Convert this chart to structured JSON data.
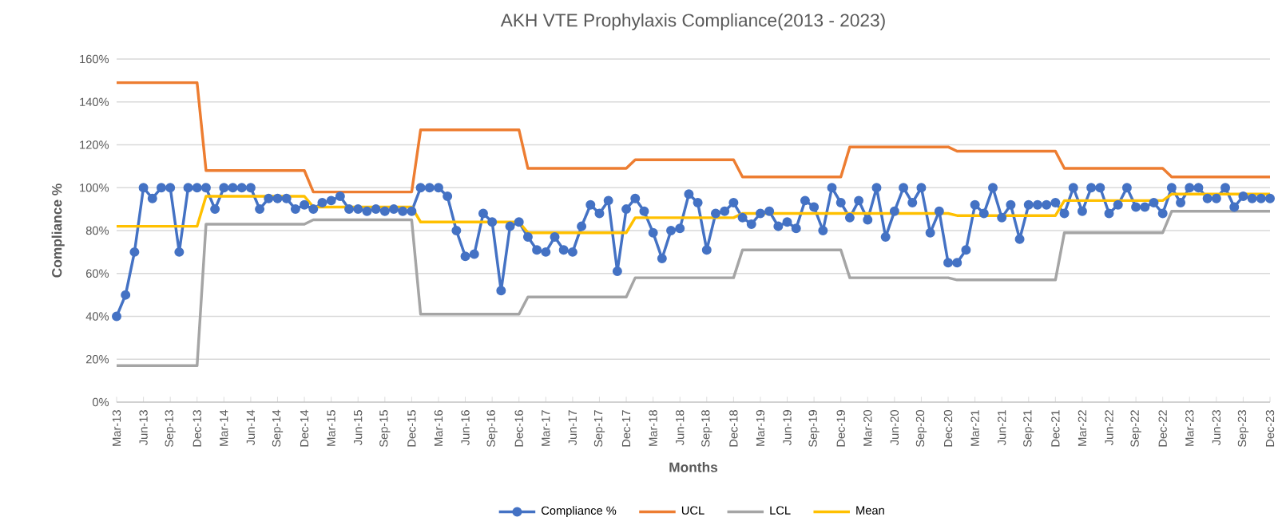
{
  "chart_data": {
    "type": "line",
    "title": "AKH VTE Prophylaxis Compliance(2013 - 2023)",
    "xlabel": "Months",
    "ylabel": "Compliance %",
    "categories": [
      "Mar-13",
      null,
      null,
      "Jun-13",
      null,
      null,
      "Sep-13",
      null,
      null,
      "Dec-13",
      null,
      null,
      "Mar-14",
      null,
      null,
      "Jun-14",
      null,
      null,
      "Sep-14",
      null,
      null,
      "Dec-14",
      null,
      null,
      "Mar-15",
      null,
      null,
      "Jun-15",
      null,
      null,
      "Sep-15",
      null,
      null,
      "Dec-15",
      null,
      null,
      "Mar-16",
      null,
      null,
      "Jun-16",
      null,
      null,
      "Sep-16",
      null,
      null,
      "Dec-16",
      null,
      null,
      "Mar-17",
      null,
      null,
      "Jun-17",
      null,
      null,
      "Sep-17",
      null,
      null,
      "Dec-17",
      null,
      null,
      "Mar-18",
      null,
      null,
      "Jun-18",
      null,
      null,
      "Sep-18",
      null,
      null,
      "Dec-18",
      null,
      null,
      "Mar-19",
      null,
      null,
      "Jun-19",
      null,
      null,
      "Sep-19",
      null,
      null,
      "Dec-19",
      null,
      null,
      "Mar-20",
      null,
      null,
      "Jun-20",
      null,
      null,
      "Sep-20",
      null,
      null,
      "Dec-20",
      null,
      null,
      "Mar-21",
      null,
      null,
      "Jun-21",
      null,
      null,
      "Sep-21",
      null,
      null,
      "Dec-21",
      null,
      null,
      "Mar-22",
      null,
      null,
      "Jun-22",
      null,
      null,
      "Sep-22",
      null,
      null,
      "Dec-22",
      null,
      null,
      "Mar-23",
      null,
      null,
      "Jun-23",
      null,
      null,
      "Sep-23",
      null,
      null,
      "Dec-23"
    ],
    "series": [
      {
        "name": "Compliance %",
        "color": "#4472c4",
        "marker": "circle",
        "values": [
          40,
          50,
          70,
          100,
          95,
          100,
          100,
          70,
          100,
          100,
          100,
          90,
          100,
          100,
          100,
          100,
          90,
          95,
          95,
          95,
          90,
          92,
          90,
          93,
          94,
          96,
          90,
          90,
          89,
          90,
          89,
          90,
          89,
          89,
          100,
          100,
          100,
          96,
          80,
          68,
          69,
          88,
          84,
          52,
          82,
          84,
          77,
          71,
          70,
          77,
          71,
          70,
          82,
          92,
          88,
          94,
          61,
          90,
          95,
          89,
          79,
          67,
          80,
          81,
          97,
          93,
          71,
          88,
          89,
          93,
          86,
          83,
          88,
          89,
          82,
          84,
          81,
          94,
          91,
          80,
          100,
          93,
          86,
          94,
          85,
          100,
          77,
          89,
          100,
          93,
          100,
          79,
          89,
          65,
          65,
          71,
          92,
          88,
          100,
          86,
          92,
          76,
          92,
          92,
          92,
          93,
          88,
          100,
          89,
          100,
          100,
          88,
          92,
          100,
          91,
          91,
          93,
          88,
          100,
          93,
          100,
          100,
          95,
          95,
          100,
          91,
          96,
          95,
          95,
          95
        ]
      },
      {
        "name": "UCL",
        "color": "#ed7d31",
        "marker": "none",
        "values": [
          149,
          149,
          149,
          149,
          149,
          149,
          149,
          149,
          149,
          149,
          108,
          108,
          108,
          108,
          108,
          108,
          108,
          108,
          108,
          108,
          108,
          108,
          98,
          98,
          98,
          98,
          98,
          98,
          98,
          98,
          98,
          98,
          98,
          98,
          127,
          127,
          127,
          127,
          127,
          127,
          127,
          127,
          127,
          127,
          127,
          127,
          109,
          109,
          109,
          109,
          109,
          109,
          109,
          109,
          109,
          109,
          109,
          109,
          113,
          113,
          113,
          113,
          113,
          113,
          113,
          113,
          113,
          113,
          113,
          113,
          105,
          105,
          105,
          105,
          105,
          105,
          105,
          105,
          105,
          105,
          105,
          105,
          119,
          119,
          119,
          119,
          119,
          119,
          119,
          119,
          119,
          119,
          119,
          119,
          117,
          117,
          117,
          117,
          117,
          117,
          117,
          117,
          117,
          117,
          117,
          117,
          109,
          109,
          109,
          109,
          109,
          109,
          109,
          109,
          109,
          109,
          109,
          109,
          105,
          105,
          105,
          105,
          105,
          105,
          105,
          105,
          105,
          105,
          105,
          105
        ]
      },
      {
        "name": "LCL",
        "color": "#a5a5a5",
        "marker": "none",
        "values": [
          17,
          17,
          17,
          17,
          17,
          17,
          17,
          17,
          17,
          17,
          83,
          83,
          83,
          83,
          83,
          83,
          83,
          83,
          83,
          83,
          83,
          83,
          85,
          85,
          85,
          85,
          85,
          85,
          85,
          85,
          85,
          85,
          85,
          85,
          41,
          41,
          41,
          41,
          41,
          41,
          41,
          41,
          41,
          41,
          41,
          41,
          49,
          49,
          49,
          49,
          49,
          49,
          49,
          49,
          49,
          49,
          49,
          49,
          58,
          58,
          58,
          58,
          58,
          58,
          58,
          58,
          58,
          58,
          58,
          58,
          71,
          71,
          71,
          71,
          71,
          71,
          71,
          71,
          71,
          71,
          71,
          71,
          58,
          58,
          58,
          58,
          58,
          58,
          58,
          58,
          58,
          58,
          58,
          58,
          57,
          57,
          57,
          57,
          57,
          57,
          57,
          57,
          57,
          57,
          57,
          57,
          79,
          79,
          79,
          79,
          79,
          79,
          79,
          79,
          79,
          79,
          79,
          79,
          89,
          89,
          89,
          89,
          89,
          89,
          89,
          89,
          89,
          89,
          89,
          89
        ]
      },
      {
        "name": "Mean",
        "color": "#ffc000",
        "marker": "none",
        "values": [
          82,
          82,
          82,
          82,
          82,
          82,
          82,
          82,
          82,
          82,
          96,
          96,
          96,
          96,
          96,
          96,
          96,
          96,
          96,
          96,
          96,
          96,
          91,
          91,
          91,
          91,
          91,
          91,
          91,
          91,
          91,
          91,
          91,
          91,
          84,
          84,
          84,
          84,
          84,
          84,
          84,
          84,
          84,
          84,
          84,
          84,
          79,
          79,
          79,
          79,
          79,
          79,
          79,
          79,
          79,
          79,
          79,
          79,
          86,
          86,
          86,
          86,
          86,
          86,
          86,
          86,
          86,
          86,
          86,
          86,
          88,
          88,
          88,
          88,
          88,
          88,
          88,
          88,
          88,
          88,
          88,
          88,
          88,
          88,
          88,
          88,
          88,
          88,
          88,
          88,
          88,
          88,
          88,
          88,
          87,
          87,
          87,
          87,
          87,
          87,
          87,
          87,
          87,
          87,
          87,
          87,
          94,
          94,
          94,
          94,
          94,
          94,
          94,
          94,
          94,
          94,
          94,
          94,
          97,
          97,
          97,
          97,
          97,
          97,
          97,
          97,
          97,
          97,
          97,
          97
        ]
      }
    ],
    "ylim": [
      0,
      160
    ],
    "yticks": [
      {
        "value": 0,
        "label": "0%"
      },
      {
        "value": 20,
        "label": "20%"
      },
      {
        "value": 40,
        "label": "40%"
      },
      {
        "value": 60,
        "label": "60%"
      },
      {
        "value": 80,
        "label": "80%"
      },
      {
        "value": 100,
        "label": "100%"
      },
      {
        "value": 120,
        "label": "120%"
      },
      {
        "value": 140,
        "label": "140%"
      },
      {
        "value": 160,
        "label": "160%"
      }
    ],
    "grid": "y",
    "legend": "bottom",
    "line_style": "solid"
  }
}
